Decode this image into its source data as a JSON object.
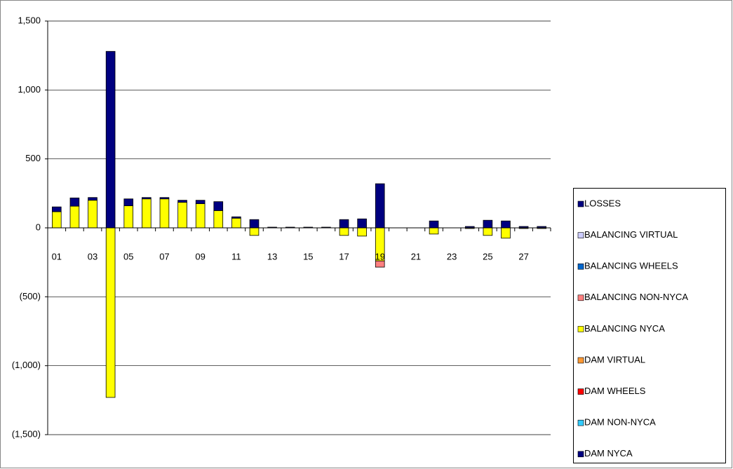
{
  "chart_data": {
    "type": "stacked-bar",
    "categories": [
      "01",
      null,
      "03",
      null,
      "05",
      null,
      "07",
      null,
      "09",
      null,
      "11",
      null,
      "13",
      null,
      "15",
      null,
      "17",
      null,
      "19",
      null,
      "21",
      null,
      "23",
      null,
      "25",
      null,
      "27",
      null
    ],
    "series": [
      {
        "name": "DAM NYCA",
        "color": "#000080",
        "values": [
          0,
          0,
          0,
          0,
          0,
          0,
          0,
          0,
          0,
          0,
          0,
          0,
          0,
          0,
          0,
          0,
          0,
          0,
          0,
          0,
          0,
          0,
          0,
          0,
          0,
          0,
          0,
          0
        ]
      },
      {
        "name": "DAM NON-NYCA",
        "color": "#33ccff",
        "values": [
          0,
          0,
          0,
          0,
          0,
          0,
          0,
          0,
          0,
          0,
          0,
          0,
          0,
          0,
          0,
          0,
          0,
          0,
          0,
          0,
          0,
          0,
          0,
          0,
          0,
          0,
          0,
          0
        ]
      },
      {
        "name": "DAM WHEELS",
        "color": "#ff0000",
        "values": [
          0,
          0,
          0,
          0,
          0,
          0,
          0,
          0,
          0,
          0,
          0,
          0,
          0,
          0,
          0,
          0,
          0,
          0,
          0,
          0,
          0,
          0,
          0,
          0,
          0,
          0,
          0,
          0
        ]
      },
      {
        "name": "DAM VIRTUAL",
        "color": "#ff9933",
        "values": [
          0,
          0,
          0,
          0,
          0,
          0,
          0,
          0,
          0,
          0,
          0,
          0,
          0,
          0,
          0,
          0,
          0,
          0,
          0,
          0,
          0,
          0,
          0,
          0,
          0,
          0,
          0,
          0
        ]
      },
      {
        "name": "BALANCING NYCA",
        "color": "#ffff00",
        "values": [
          117,
          157,
          200,
          -1230,
          160,
          210,
          210,
          185,
          175,
          125,
          70,
          -55,
          0,
          0,
          0,
          0,
          -55,
          -60,
          -240,
          0,
          0,
          -45,
          0,
          -5,
          -55,
          -75,
          -5,
          -5
        ]
      },
      {
        "name": "BALANCING NON-NYCA",
        "color": "#ff8080",
        "values": [
          0,
          0,
          0,
          0,
          0,
          0,
          0,
          0,
          0,
          0,
          0,
          0,
          0,
          0,
          0,
          0,
          0,
          0,
          -45,
          0,
          0,
          0,
          0,
          0,
          0,
          0,
          0,
          0
        ]
      },
      {
        "name": "BALANCING WHEELS",
        "color": "#0066cc",
        "values": [
          0,
          0,
          0,
          0,
          0,
          0,
          0,
          0,
          0,
          0,
          0,
          0,
          0,
          0,
          0,
          0,
          0,
          0,
          0,
          0,
          0,
          0,
          0,
          0,
          0,
          0,
          0,
          0
        ]
      },
      {
        "name": "BALANCING VIRTUAL",
        "color": "#ccccff",
        "values": [
          0,
          0,
          0,
          0,
          0,
          0,
          0,
          0,
          0,
          0,
          0,
          0,
          0,
          0,
          0,
          0,
          0,
          0,
          0,
          0,
          0,
          0,
          0,
          0,
          0,
          0,
          0,
          0
        ]
      },
      {
        "name": "LOSSES",
        "color": "#000080",
        "values": [
          35,
          60,
          20,
          1280,
          50,
          10,
          10,
          15,
          25,
          65,
          10,
          60,
          5,
          5,
          5,
          5,
          60,
          65,
          320,
          0,
          0,
          50,
          0,
          10,
          55,
          50,
          10,
          10
        ]
      }
    ],
    "ylim": [
      -1500,
      1500
    ],
    "yticks": [
      {
        "value": -1500,
        "label": "(1,500)"
      },
      {
        "value": -1000,
        "label": "(1,000)"
      },
      {
        "value": -500,
        "label": "(500)"
      },
      0,
      500,
      {
        "value": 1000,
        "label": "1,000"
      },
      {
        "value": 1500,
        "label": "1,500"
      }
    ],
    "negative_tick_color": "#ff0000",
    "grid": true,
    "legend": "right"
  }
}
